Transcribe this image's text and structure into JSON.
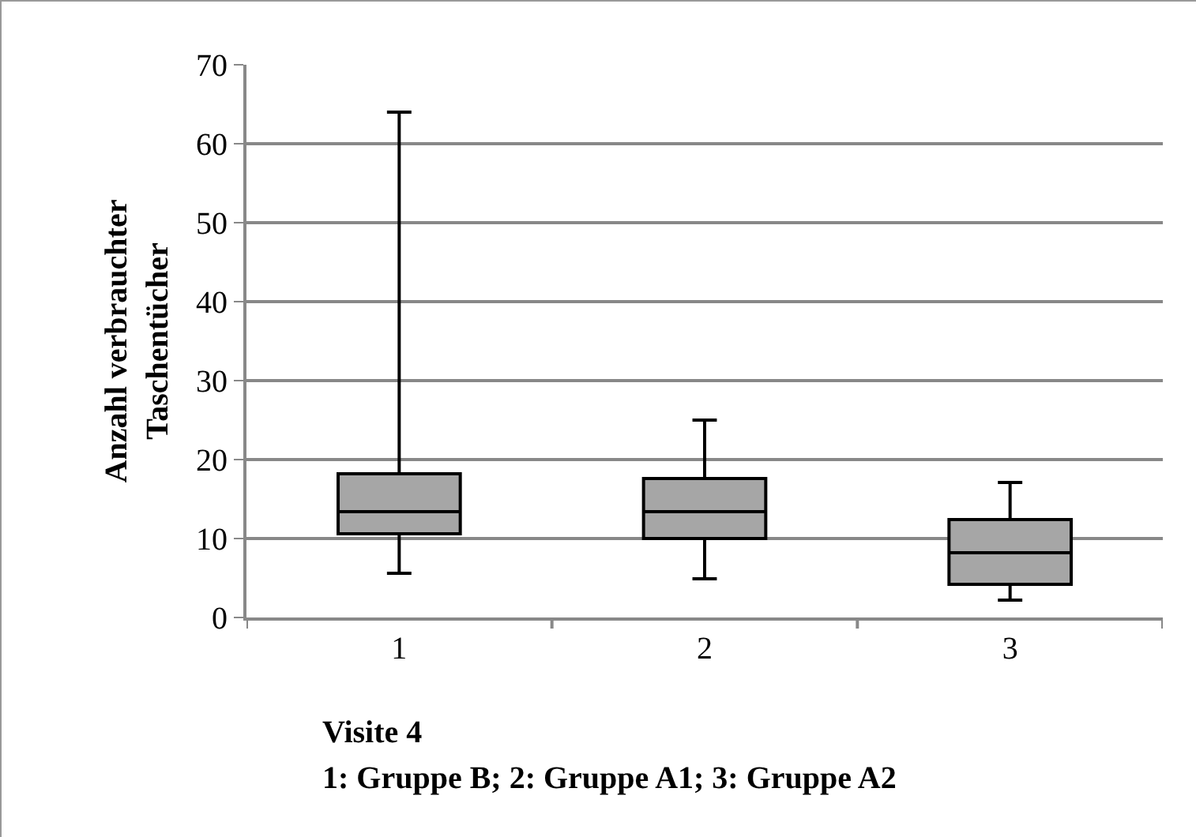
{
  "chart_data": {
    "type": "box",
    "categories": [
      "1",
      "2",
      "3"
    ],
    "boxes": [
      {
        "low": 5.6,
        "q1": 10.6,
        "median": 13.4,
        "q3": 18.2,
        "high": 64
      },
      {
        "low": 4.9,
        "q1": 10,
        "median": 13.4,
        "q3": 17.6,
        "high": 25
      },
      {
        "low": 2.2,
        "q1": 4.2,
        "median": 8.2,
        "q3": 12.4,
        "high": 17.1
      }
    ],
    "color": "#a6a6a6",
    "ylabel": "Anzahl verbrauchter Taschentücher",
    "ylim": [
      0,
      70
    ],
    "yticks": [
      0,
      10,
      20,
      30,
      40,
      50,
      60,
      70
    ],
    "grid": "y",
    "annotations": [
      "Visite 4",
      "1: Gruppe B; 2: Gruppe A1; 3: Gruppe A2"
    ]
  }
}
